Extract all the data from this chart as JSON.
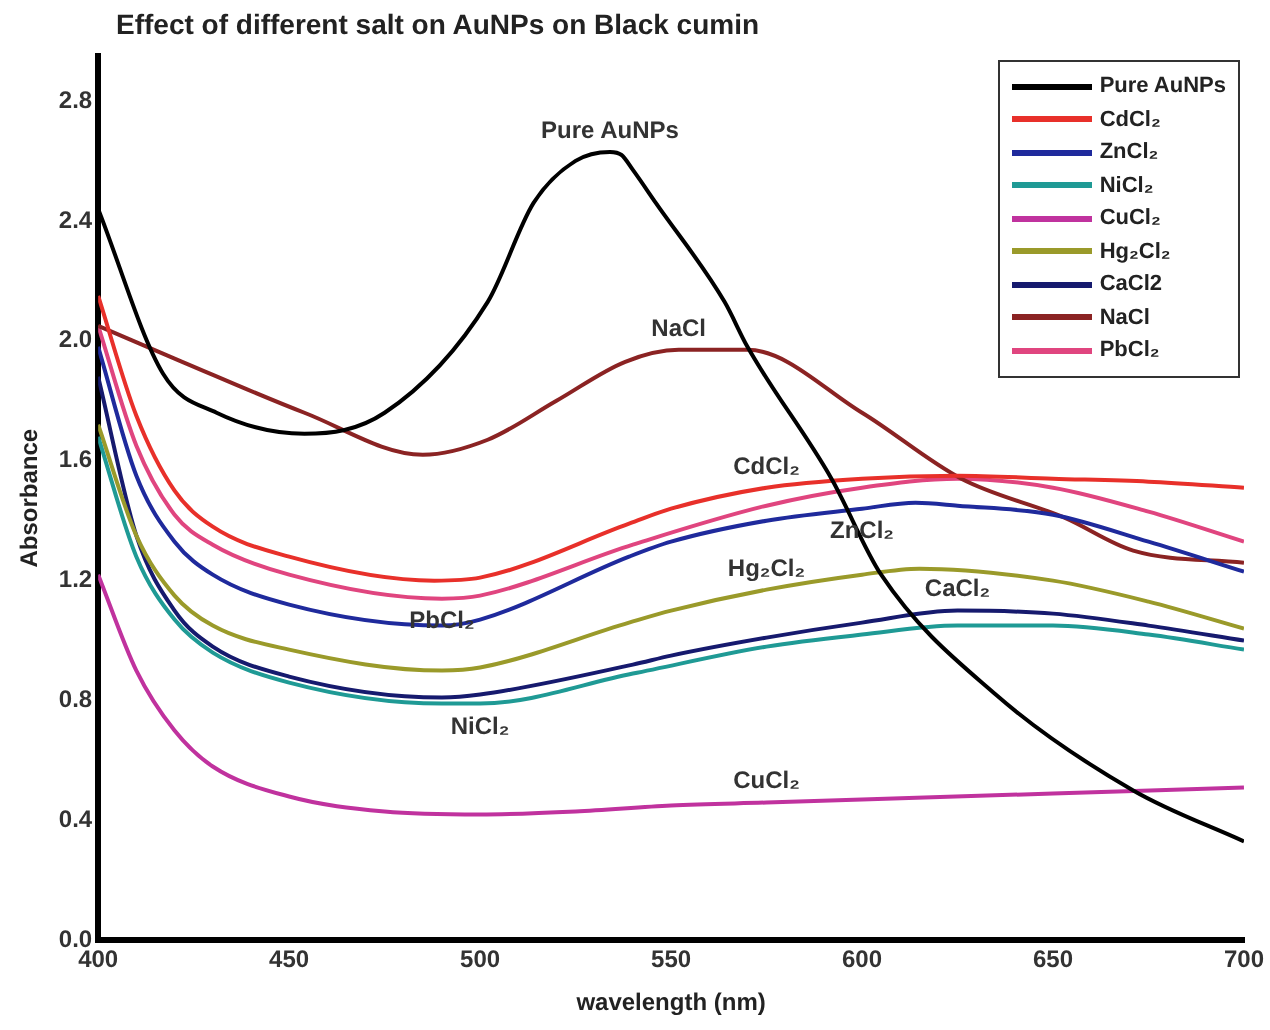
{
  "chart_data": {
    "type": "line",
    "title": "Effect of different salt on AuNPs on Black cumin",
    "xlabel": "wavelength (nm)",
    "ylabel": "Absorbance",
    "xlim": [
      400,
      700
    ],
    "xticks": [
      400,
      450,
      500,
      550,
      600,
      650,
      700
    ],
    "ylim": [
      0,
      2.95
    ],
    "yticks": [
      {
        "value": 0,
        "label": "0.0"
      },
      0.4,
      0.8,
      1.2,
      1.6,
      {
        "value": 2,
        "label": "2.0"
      },
      2.4,
      2.8
    ],
    "grid": false,
    "legend": "top right",
    "marker": "none",
    "line_style": "solid",
    "series": [
      {
        "name": "Pure AuNPs",
        "color": "#000000",
        "x": [
          400,
          417,
          431,
          454,
          475,
          502,
          514,
          525,
          534,
          537,
          540,
          546,
          564,
          570,
          592,
          605,
          635,
          671,
          700
        ],
        "values": [
          2.44,
          1.89,
          1.76,
          1.69,
          1.76,
          2.13,
          2.46,
          2.6,
          2.63,
          2.62,
          2.57,
          2.46,
          2.13,
          1.98,
          1.54,
          1.22,
          0.82,
          0.5,
          0.33
        ]
      },
      {
        "name": "CdCl₂",
        "color": "#e8302a",
        "x": [
          400,
          410,
          420,
          430,
          450,
          488,
          500,
          539,
          550,
          575,
          600,
          625,
          650,
          675,
          700
        ],
        "values": [
          2.15,
          1.75,
          1.5,
          1.38,
          1.28,
          1.2,
          1.21,
          1.39,
          1.44,
          1.51,
          1.54,
          1.55,
          1.54,
          1.53,
          1.51
        ]
      },
      {
        "name": "ZnCl₂",
        "color": "#1f2a9c",
        "x": [
          400,
          410,
          420,
          430,
          450,
          490,
          500,
          539,
          550,
          575,
          600,
          614,
          625,
          650,
          675,
          700
        ],
        "values": [
          1.98,
          1.55,
          1.33,
          1.22,
          1.12,
          1.05,
          1.07,
          1.28,
          1.33,
          1.4,
          1.44,
          1.46,
          1.45,
          1.42,
          1.33,
          1.23
        ]
      },
      {
        "name": "NiCl₂",
        "color": "#1f9a95",
        "x": [
          400,
          410,
          420,
          430,
          450,
          490,
          500,
          540,
          575,
          600,
          625,
          650,
          675,
          700
        ],
        "values": [
          1.68,
          1.28,
          1.07,
          0.96,
          0.86,
          0.79,
          0.79,
          0.89,
          0.98,
          1.02,
          1.05,
          1.05,
          1.02,
          0.97
        ]
      },
      {
        "name": "CuCl₂",
        "color": "#c0329e",
        "x": [
          400,
          410,
          420,
          430,
          450,
          475,
          500,
          525,
          550,
          575,
          600,
          650,
          700
        ],
        "values": [
          1.22,
          0.9,
          0.7,
          0.58,
          0.48,
          0.43,
          0.42,
          0.43,
          0.45,
          0.46,
          0.47,
          0.49,
          0.51
        ]
      },
      {
        "name": "Hg₂Cl₂",
        "color": "#9a9a2a",
        "x": [
          400,
          410,
          420,
          430,
          450,
          490,
          500,
          539,
          550,
          575,
          600,
          615,
          650,
          675,
          700
        ],
        "values": [
          1.72,
          1.35,
          1.15,
          1.05,
          0.97,
          0.9,
          0.91,
          1.06,
          1.1,
          1.17,
          1.22,
          1.24,
          1.2,
          1.13,
          1.04
        ]
      },
      {
        "name": "CaCl2",
        "color": "#161a6e",
        "x": [
          400,
          410,
          420,
          430,
          450,
          490,
          500,
          540,
          550,
          575,
          600,
          625,
          650,
          675,
          700
        ],
        "values": [
          1.88,
          1.35,
          1.1,
          0.98,
          0.88,
          0.81,
          0.82,
          0.92,
          0.95,
          1.01,
          1.06,
          1.1,
          1.09,
          1.05,
          1.0
        ]
      },
      {
        "name": "NaCl",
        "color": "#8b2323",
        "x": [
          400,
          422,
          454,
          485,
          502,
          520,
          538,
          552,
          570,
          600,
          626,
          653,
          671,
          700
        ],
        "values": [
          2.05,
          1.93,
          1.76,
          1.62,
          1.67,
          1.8,
          1.93,
          1.97,
          1.97,
          1.76,
          1.54,
          1.41,
          1.3,
          1.26
        ]
      },
      {
        "name": "PbCl₂",
        "color": "#e0457f",
        "x": [
          400,
          410,
          420,
          430,
          450,
          490,
          500,
          540,
          575,
          600,
          625,
          650,
          675,
          700
        ],
        "values": [
          2.05,
          1.65,
          1.42,
          1.32,
          1.22,
          1.14,
          1.15,
          1.32,
          1.45,
          1.51,
          1.54,
          1.51,
          1.43,
          1.33
        ]
      }
    ],
    "annotations": [
      {
        "text": "Pure AuNPs",
        "x": 534,
        "y": 2.63
      },
      {
        "text": "NaCl",
        "x": 552,
        "y": 1.97
      },
      {
        "text": "CdCl₂",
        "x": 575,
        "y": 1.51
      },
      {
        "text": "ZnCl₂",
        "x": 600,
        "y": 1.44
      },
      {
        "text": "Hg₂Cl₂",
        "x": 575,
        "y": 1.17
      },
      {
        "text": "CaCl₂",
        "x": 625,
        "y": 1.1
      },
      {
        "text": "PbCl₂",
        "x": 490,
        "y": 1.14
      },
      {
        "text": "NiCl₂",
        "x": 500,
        "y": 0.79
      },
      {
        "text": "CuCl₂",
        "x": 575,
        "y": 0.46
      }
    ]
  }
}
